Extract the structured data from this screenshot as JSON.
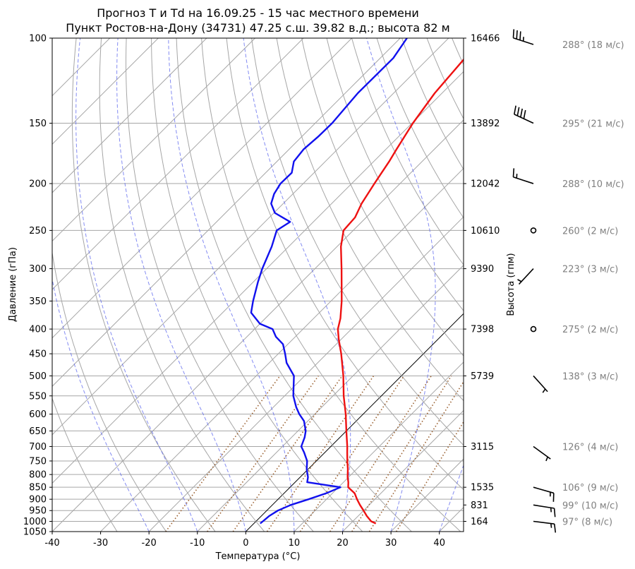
{
  "chart_data": {
    "type": "line",
    "title_line1": "Прогноз T и Td на 16.09.25 - 15 час местного времени",
    "title_line2": "Пункт Ростов-на-Дону (34731) 47.25 с.ш. 39.82 в.д.; высота 82 м",
    "xlabel": "Температура (°C)",
    "ylabel": "Давление (гПа)",
    "ylabel_right": "Высота (гпм)",
    "xlim": [
      -40,
      45
    ],
    "ylim": [
      1050,
      100
    ],
    "x_ticks": [
      -40,
      -30,
      -20,
      -10,
      0,
      10,
      20,
      30,
      40
    ],
    "pressure_ticks": [
      1050,
      1000,
      950,
      900,
      850,
      800,
      750,
      700,
      650,
      600,
      550,
      500,
      450,
      400,
      350,
      300,
      250,
      200,
      150,
      100
    ],
    "height_ticks": [
      {
        "p": 100,
        "label": "16466"
      },
      {
        "p": 150,
        "label": "13892"
      },
      {
        "p": 200,
        "label": "12042"
      },
      {
        "p": 250,
        "label": "10610"
      },
      {
        "p": 300,
        "label": "9390"
      },
      {
        "p": 400,
        "label": "7398"
      },
      {
        "p": 500,
        "label": "5739"
      },
      {
        "p": 700,
        "label": "3115"
      },
      {
        "p": 850,
        "label": "1535"
      },
      {
        "p": 925,
        "label": "831"
      },
      {
        "p": 1000,
        "label": "164"
      }
    ],
    "series": [
      {
        "name": "T",
        "color": "#ee1111",
        "points": [
          [
            1010,
            25.2
          ],
          [
            1000,
            23.8
          ],
          [
            975,
            21.8
          ],
          [
            950,
            20.0
          ],
          [
            925,
            18.1
          ],
          [
            900,
            16.3
          ],
          [
            875,
            14.6
          ],
          [
            850,
            12.0
          ],
          [
            830,
            11.0
          ],
          [
            810,
            9.8
          ],
          [
            780,
            8.2
          ],
          [
            750,
            6.4
          ],
          [
            720,
            4.6
          ],
          [
            700,
            3.4
          ],
          [
            650,
            0.0
          ],
          [
            600,
            -3.6
          ],
          [
            550,
            -7.8
          ],
          [
            500,
            -12.0
          ],
          [
            450,
            -17.0
          ],
          [
            420,
            -20.5
          ],
          [
            400,
            -22.8
          ],
          [
            380,
            -24.5
          ],
          [
            350,
            -27.8
          ],
          [
            300,
            -34.5
          ],
          [
            270,
            -39.2
          ],
          [
            250,
            -42.0
          ],
          [
            235,
            -42.3
          ],
          [
            220,
            -43.8
          ],
          [
            200,
            -45.3
          ],
          [
            180,
            -46.8
          ],
          [
            170,
            -47.8
          ],
          [
            150,
            -49.8
          ],
          [
            130,
            -51.5
          ],
          [
            110,
            -52.5
          ],
          [
            100,
            -52.8
          ]
        ]
      },
      {
        "name": "Td",
        "color": "#1111ee",
        "points": [
          [
            1010,
            1.3
          ],
          [
            1000,
            1.4
          ],
          [
            975,
            1.6
          ],
          [
            950,
            2.3
          ],
          [
            925,
            3.8
          ],
          [
            900,
            6.3
          ],
          [
            875,
            8.7
          ],
          [
            850,
            10.4
          ],
          [
            830,
            2.5
          ],
          [
            810,
            1.6
          ],
          [
            780,
            -0.3
          ],
          [
            750,
            -1.9
          ],
          [
            720,
            -4.3
          ],
          [
            700,
            -6.1
          ],
          [
            670,
            -7.3
          ],
          [
            650,
            -8.4
          ],
          [
            620,
            -10.8
          ],
          [
            600,
            -13.2
          ],
          [
            580,
            -15.3
          ],
          [
            550,
            -18.2
          ],
          [
            500,
            -22.2
          ],
          [
            470,
            -26.4
          ],
          [
            450,
            -28.6
          ],
          [
            430,
            -31.0
          ],
          [
            415,
            -34.0
          ],
          [
            400,
            -36.3
          ],
          [
            390,
            -40.0
          ],
          [
            370,
            -44.1
          ],
          [
            350,
            -46.1
          ],
          [
            320,
            -49.0
          ],
          [
            300,
            -50.9
          ],
          [
            270,
            -53.5
          ],
          [
            250,
            -55.8
          ],
          [
            240,
            -54.8
          ],
          [
            230,
            -59.8
          ],
          [
            220,
            -62.5
          ],
          [
            210,
            -63.9
          ],
          [
            200,
            -64.7
          ],
          [
            190,
            -64.6
          ],
          [
            180,
            -66.5
          ],
          [
            170,
            -67.0
          ],
          [
            160,
            -66.6
          ],
          [
            150,
            -66.5
          ],
          [
            130,
            -67.4
          ],
          [
            110,
            -67.3
          ],
          [
            100,
            -68.6
          ]
        ]
      }
    ],
    "winds": [
      {
        "p": 100,
        "dir": 288,
        "spd": 18,
        "label": "288° (18 м/с)"
      },
      {
        "p": 150,
        "dir": 295,
        "spd": 21,
        "label": "295° (21 м/с)"
      },
      {
        "p": 200,
        "dir": 288,
        "spd": 10,
        "label": "288° (10 м/с)"
      },
      {
        "p": 250,
        "dir": 260,
        "spd": 2,
        "label": "260° (2 м/с)"
      },
      {
        "p": 300,
        "dir": 223,
        "spd": 3,
        "label": "223° (3 м/с)"
      },
      {
        "p": 400,
        "dir": 275,
        "spd": 2,
        "label": "275° (2 м/с)"
      },
      {
        "p": 500,
        "dir": 138,
        "spd": 3,
        "label": "138° (3 м/с)"
      },
      {
        "p": 700,
        "dir": 126,
        "spd": 4,
        "label": "126° (4 м/с)"
      },
      {
        "p": 850,
        "dir": 106,
        "spd": 9,
        "label": "106° (9 м/с)"
      },
      {
        "p": 925,
        "dir": 99,
        "spd": 10,
        "label": "99° (10 м/с)"
      },
      {
        "p": 1000,
        "dir": 97,
        "spd": 8,
        "label": "97° (8 м/с)"
      }
    ],
    "colors": {
      "isobar": "#a6a6a6",
      "isotherm": "#a6a6a6",
      "dry_adiabat": "#a6a6a6",
      "moist_adiabat": "#5a64ee",
      "mixing_ratio": "#9a6030",
      "zero_isotherm": "#000000"
    }
  }
}
